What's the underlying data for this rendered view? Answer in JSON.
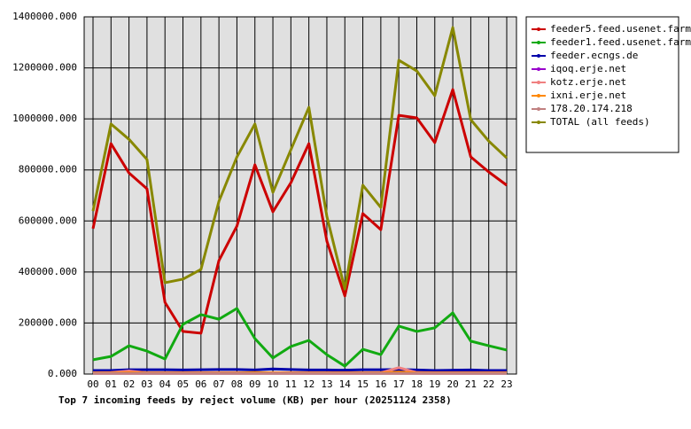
{
  "chart_data": {
    "type": "line",
    "title": "Top 7 incoming feeds by reject volume (KB) per hour (20251124 2358)",
    "categories": [
      "00",
      "01",
      "02",
      "03",
      "04",
      "05",
      "06",
      "07",
      "08",
      "09",
      "10",
      "11",
      "12",
      "13",
      "14",
      "15",
      "16",
      "17",
      "18",
      "19",
      "20",
      "21",
      "22",
      "23"
    ],
    "ylim": [
      0,
      1400000
    ],
    "yticks": [
      {
        "value": 0,
        "label": "0.000"
      },
      {
        "value": 200000,
        "label": "200000.000"
      },
      {
        "value": 400000,
        "label": "400000.000"
      },
      {
        "value": 600000,
        "label": "600000.000"
      },
      {
        "value": 800000,
        "label": "800000.000"
      },
      {
        "value": 1000000,
        "label": "1000000.000"
      },
      {
        "value": 1200000,
        "label": "1200000.000"
      },
      {
        "value": 1400000,
        "label": "1400000.000"
      }
    ],
    "grid": true,
    "legend": "right",
    "series": [
      {
        "name": "feeder5.feed.usenet.farm",
        "color": "#cc0000",
        "values": [
          570000,
          903000,
          788000,
          726000,
          281000,
          167000,
          160000,
          445000,
          580000,
          820000,
          636000,
          750000,
          903000,
          521000,
          306000,
          629000,
          566000,
          1014000,
          1004000,
          907000,
          1115000,
          851000,
          792000,
          740000
        ]
      },
      {
        "name": "feeder1.feed.usenet.farm",
        "color": "#11aa11",
        "values": [
          56000,
          69000,
          111000,
          90000,
          59000,
          195000,
          233000,
          215000,
          257000,
          139000,
          63000,
          108000,
          132000,
          76000,
          31000,
          97000,
          76000,
          188000,
          167000,
          181000,
          240000,
          129000,
          111000,
          94000
        ]
      },
      {
        "name": "feeder.ecngs.de",
        "color": "#0000aa",
        "values": [
          14000,
          14000,
          17000,
          17000,
          17000,
          16000,
          17000,
          18000,
          18000,
          16000,
          20000,
          18000,
          16000,
          16000,
          15000,
          17000,
          17000,
          18000,
          16000,
          14000,
          15000,
          16000,
          14000,
          14000
        ]
      },
      {
        "name": "iqoq.erje.net",
        "color": "#9900cc",
        "values": [
          3000,
          3000,
          3000,
          3000,
          3000,
          3000,
          3000,
          3000,
          3000,
          3000,
          3000,
          3000,
          3000,
          3000,
          3000,
          3000,
          3000,
          3000,
          3000,
          3000,
          3000,
          3000,
          3000,
          3000
        ]
      },
      {
        "name": "kotz.erje.net",
        "color": "#f08080",
        "values": [
          5000,
          6000,
          12000,
          5000,
          5000,
          5000,
          5000,
          5000,
          5000,
          5000,
          5000,
          5000,
          5000,
          5000,
          5000,
          5000,
          5000,
          25000,
          6000,
          5000,
          5000,
          5000,
          5000,
          5000
        ]
      },
      {
        "name": "ixni.erje.net",
        "color": "#ff8800",
        "values": [
          4000,
          4000,
          5000,
          4000,
          4000,
          4000,
          4000,
          4000,
          4000,
          6000,
          4000,
          4000,
          4000,
          4000,
          4000,
          4000,
          4000,
          8000,
          4000,
          4000,
          4000,
          4000,
          4000,
          4000
        ]
      },
      {
        "name": "178.20.174.218",
        "color": "#c08080",
        "values": [
          2000,
          2000,
          2000,
          2000,
          2000,
          2000,
          2000,
          2000,
          2000,
          2000,
          2000,
          2000,
          2000,
          2000,
          2000,
          2000,
          2000,
          2000,
          2000,
          2000,
          2000,
          2000,
          2000,
          2000
        ]
      },
      {
        "name": "TOTAL (all feeds)",
        "color": "#888800",
        "values": [
          639000,
          980000,
          920000,
          841000,
          358000,
          372000,
          410000,
          677000,
          851000,
          980000,
          712000,
          879000,
          1045000,
          618000,
          333000,
          740000,
          653000,
          1230000,
          1188000,
          1091000,
          1358000,
          997000,
          913000,
          847000
        ]
      }
    ]
  }
}
